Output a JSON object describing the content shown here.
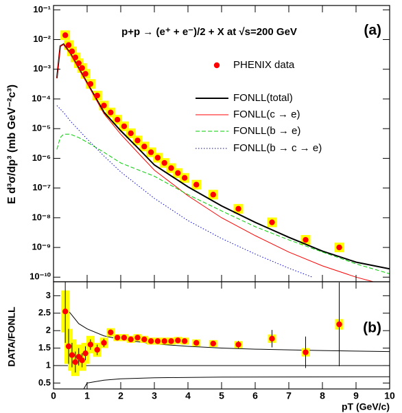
{
  "chart_data": [
    {
      "type": "scatter",
      "log_y": true,
      "title": "p+p → (e⁺ + e⁻)/2 + X at √s=200 GeV",
      "panel_label": "(a)",
      "y_label": "E d³σ/dp³ (mb GeV⁻²c³)",
      "xlim": [
        0,
        10
      ],
      "xticks": [
        0,
        1,
        2,
        3,
        4,
        5,
        6,
        7,
        8,
        9,
        10
      ],
      "ylim": [
        7e-11,
        0.14
      ],
      "yticks": [
        {
          "value": 1e-10,
          "label": "10⁻¹⁰"
        },
        {
          "value": 1e-09,
          "label": "10⁻⁹"
        },
        {
          "value": 1e-08,
          "label": "10⁻⁸"
        },
        {
          "value": 1e-07,
          "label": "10⁻⁷"
        },
        {
          "value": 1e-06,
          "label": "10⁻⁶"
        },
        {
          "value": 1e-05,
          "label": "10⁻⁵"
        },
        {
          "value": 0.0001,
          "label": "10⁻⁴"
        },
        {
          "value": 0.001,
          "label": "10⁻³"
        },
        {
          "value": 0.01,
          "label": "10⁻²"
        },
        {
          "value": 0.1,
          "label": "10⁻¹"
        }
      ],
      "syst_color": "#ffff00",
      "series": [
        {
          "name": "PHENIX data",
          "color": "#ff0000",
          "style": "marker",
          "x": [
            0.35,
            0.45,
            0.55,
            0.65,
            0.75,
            0.85,
            0.95,
            1.1,
            1.3,
            1.5,
            1.7,
            1.9,
            2.1,
            2.3,
            2.5,
            2.7,
            2.9,
            3.1,
            3.3,
            3.5,
            3.7,
            3.9,
            4.25,
            4.75,
            5.5,
            6.5,
            7.5,
            8.5
          ],
          "values": [
            0.014,
            0.0065,
            0.004,
            0.0025,
            0.0016,
            0.0011,
            0.0007,
            0.00032,
            0.00013,
            6e-05,
            3.5e-05,
            2e-05,
            1.2e-05,
            7e-06,
            4e-06,
            2.5e-06,
            1.6e-06,
            1.05e-06,
            7e-07,
            4.7e-07,
            3.2e-07,
            2.2e-07,
            1.3e-07,
            6e-08,
            2e-08,
            7e-09,
            1.8e-09,
            1e-09
          ]
        },
        {
          "name": "FONLL(total)",
          "color": "#000000",
          "style": "solid",
          "x": [
            0.1,
            0.2,
            0.3,
            0.5,
            0.75,
            1,
            1.5,
            2,
            2.5,
            3,
            4,
            5,
            6,
            7,
            8,
            9,
            10
          ],
          "values": [
            0.0005,
            0.006,
            0.007,
            0.0035,
            0.0011,
            0.00035,
            3.6e-05,
            8.5e-06,
            2.3e-06,
            6e-07,
            1.1e-07,
            2.5e-08,
            7e-09,
            2.2e-09,
            7.5e-10,
            3.2e-10,
            1.9e-10
          ]
        },
        {
          "name": "FONLL(c → e)",
          "color": "#ff0000",
          "style": "solid",
          "x": [
            0.1,
            0.2,
            0.3,
            0.5,
            0.75,
            1,
            1.5,
            2,
            2.5,
            3,
            4,
            5,
            6,
            7,
            8,
            9,
            10
          ],
          "values": [
            0.0005,
            0.006,
            0.0068,
            0.0034,
            0.00105,
            0.00033,
            3.2e-05,
            6.5e-06,
            1.6e-06,
            4e-07,
            5.5e-08,
            1e-08,
            2.5e-09,
            7e-10,
            2.4e-10,
            1e-10,
            5e-11
          ]
        },
        {
          "name": "FONLL(b → e)",
          "color": "#00cc00",
          "style": "dashed",
          "x": [
            0.1,
            0.2,
            0.3,
            0.5,
            0.75,
            1,
            1.5,
            2,
            3,
            4,
            5,
            6,
            7,
            8,
            9,
            10
          ],
          "values": [
            2e-06,
            5e-06,
            6.5e-06,
            6.5e-06,
            5e-06,
            3.5e-06,
            1.6e-06,
            7e-07,
            2.5e-07,
            6e-08,
            1.7e-08,
            5e-09,
            1.8e-09,
            7e-10,
            2.8e-10,
            1.3e-10
          ]
        },
        {
          "name": "FONLL(b → c → e)",
          "color": "#0000cc",
          "style": "dotted",
          "x": [
            0.1,
            0.3,
            0.5,
            1,
            1.5,
            2,
            3,
            4,
            5,
            6,
            7,
            7.7
          ],
          "values": [
            6e-05,
            3.5e-05,
            1.8e-05,
            4.5e-06,
            1.2e-06,
            3.5e-07,
            4.5e-08,
            8e-09,
            2e-09,
            6e-10,
            2e-10,
            1e-10
          ]
        }
      ]
    },
    {
      "type": "ratio",
      "panel_label": "(b)",
      "y_label": "DATA/FONLL",
      "x_label": "pT (GeV/c)",
      "xlim": [
        0,
        10
      ],
      "xticks": [
        0,
        1,
        2,
        3,
        4,
        5,
        6,
        7,
        8,
        9,
        10
      ],
      "ylim": [
        0.33,
        3.4
      ],
      "yticks": [
        0.5,
        1,
        1.5,
        2,
        2.5,
        3
      ],
      "reference": 1,
      "color": "#ff0000",
      "syst_color": "#ffff00",
      "x": [
        0.35,
        0.45,
        0.55,
        0.65,
        0.75,
        0.85,
        0.95,
        1.1,
        1.3,
        1.5,
        1.7,
        1.9,
        2.1,
        2.3,
        2.5,
        2.7,
        2.9,
        3.1,
        3.3,
        3.5,
        3.7,
        3.9,
        4.25,
        4.75,
        5.5,
        6.5,
        7.5,
        8.5
      ],
      "values": [
        2.55,
        1.55,
        1.3,
        1.1,
        1.25,
        1.15,
        1.35,
        1.6,
        1.45,
        1.65,
        1.95,
        1.8,
        1.8,
        1.75,
        1.8,
        1.75,
        1.7,
        1.7,
        1.7,
        1.7,
        1.72,
        1.7,
        1.65,
        1.63,
        1.6,
        1.77,
        1.38,
        2.18
      ],
      "errors": [
        0.9,
        0.5,
        0.35,
        0.3,
        0.25,
        0.2,
        0.2,
        0.15,
        0.15,
        0.12,
        0.08,
        0.07,
        0.07,
        0.06,
        0.06,
        0.06,
        0.05,
        0.05,
        0.05,
        0.05,
        0.05,
        0.05,
        0.08,
        0.08,
        0.1,
        0.25,
        0.45,
        1.2
      ],
      "syst": [
        0.6,
        0.5,
        0.45,
        0.4,
        0.35,
        0.3,
        0.3,
        0.25,
        0.2,
        0.15,
        0.12,
        0.1,
        0.1,
        0.1,
        0.1,
        0.1,
        0.1,
        0.1,
        0.1,
        0.1,
        0.1,
        0.1,
        0.1,
        0.1,
        0.1,
        0.12,
        0.12,
        0.15
      ],
      "band_upper": {
        "x": [
          0.3,
          0.5,
          0.75,
          1,
          1.5,
          2,
          3,
          4,
          5,
          6,
          7,
          8,
          10
        ],
        "values": [
          2.7,
          2.5,
          2.2,
          2.05,
          1.85,
          1.75,
          1.62,
          1.55,
          1.5,
          1.47,
          1.45,
          1.43,
          1.4
        ]
      },
      "band_lower": {
        "x": [
          0.9,
          1,
          1.5,
          2,
          3,
          5,
          10
        ],
        "values": [
          0.33,
          0.5,
          0.58,
          0.62,
          0.65,
          0.67,
          0.68
        ]
      }
    }
  ]
}
